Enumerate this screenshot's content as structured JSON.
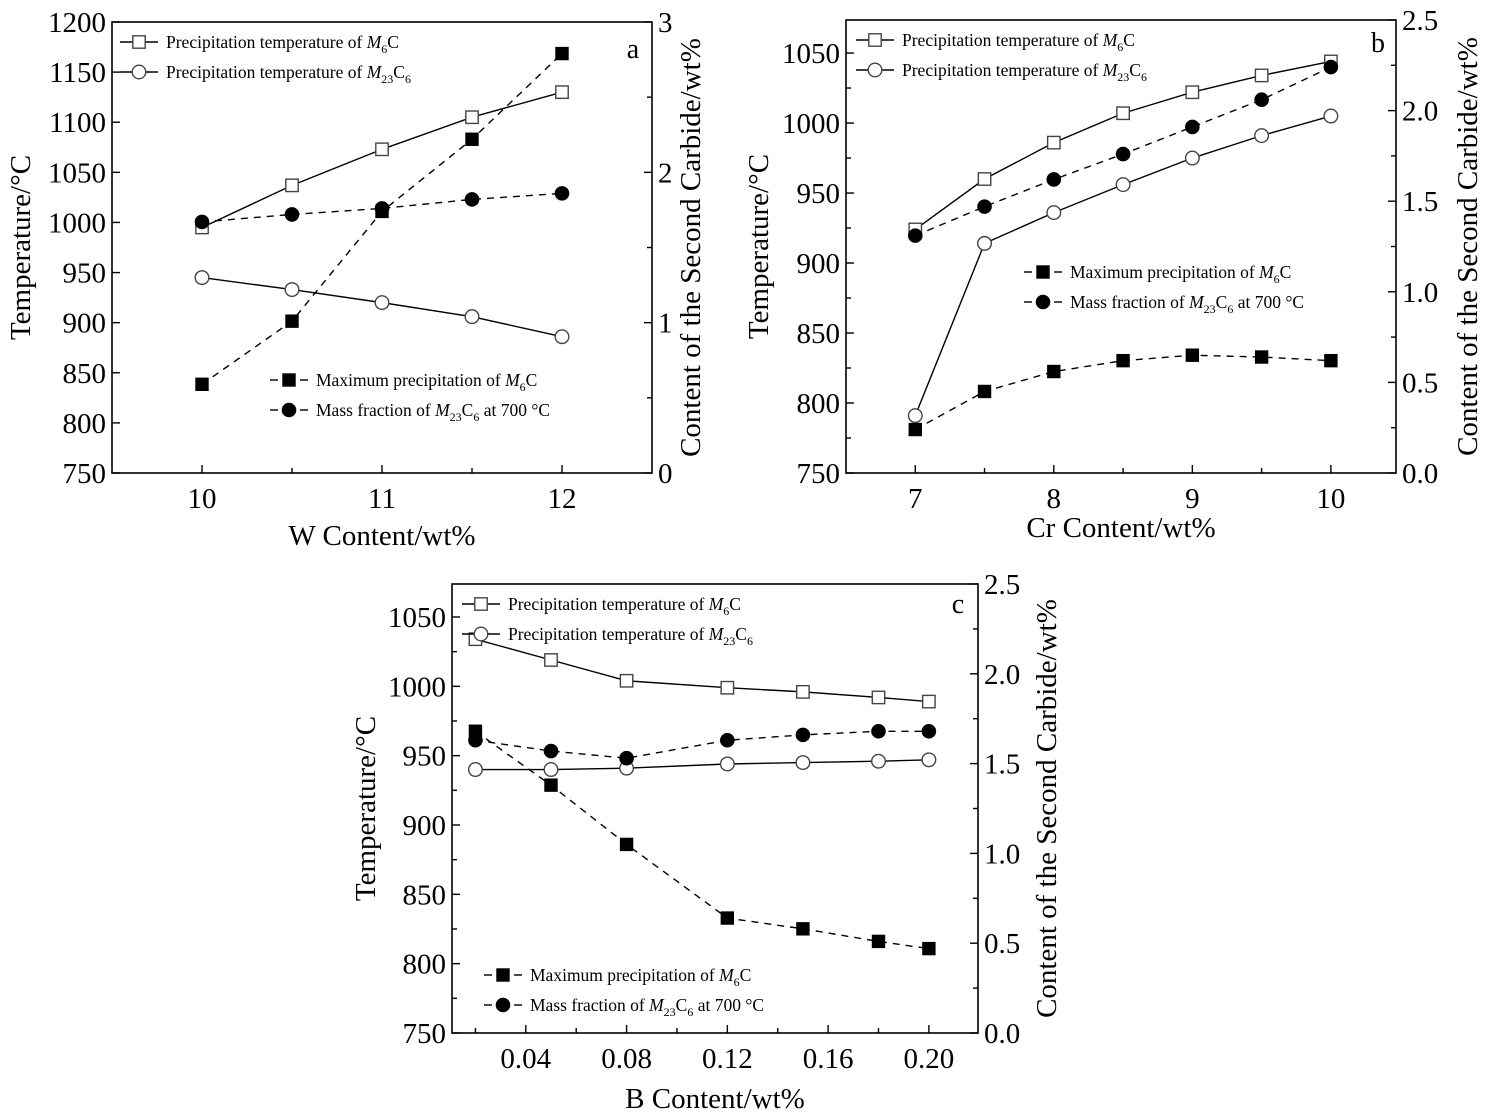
{
  "chart_data": [
    {
      "type": "line",
      "panel_label": "a",
      "xlabel": "W Content/wt%",
      "ylabel": "Temperature/°C",
      "y2label": "Content of the Second Carbide/wt%",
      "xlim": [
        9.5,
        12.5
      ],
      "ylim": [
        750,
        1200
      ],
      "y2lim": [
        0,
        3
      ],
      "xticks": [
        10,
        11,
        12
      ],
      "xtick_labels": [
        "10",
        "11",
        "12"
      ],
      "xminor": [
        10.5,
        11.5
      ],
      "yticks": [
        750,
        800,
        850,
        900,
        950,
        1000,
        1050,
        1100,
        1150,
        1200
      ],
      "ytick_labels": [
        "750",
        "800",
        "850",
        "900",
        "950",
        "1000",
        "1050",
        "1100",
        "1150",
        "1200"
      ],
      "yminor": [],
      "y2ticks": [
        0,
        1,
        2,
        3
      ],
      "y2tick_labels": [
        "0",
        "1",
        "2",
        "3"
      ],
      "y2minor": [
        0.5,
        1.5,
        2.5
      ],
      "grid": false,
      "legend_upper": "top-left",
      "legend_lower": "bottom-center",
      "x": [
        10,
        10.5,
        11,
        11.5,
        12
      ],
      "series": [
        {
          "name": "Precipitation temperature of M6C",
          "legend": {
            "pre": "Precipitation temperature of ",
            "m": "M",
            "msub": "6",
            "c": "C",
            "csub": "",
            "post": ""
          },
          "axis": "left",
          "marker": "open-square",
          "line": "solid",
          "values": [
            995,
            1037,
            1073,
            1105,
            1130
          ]
        },
        {
          "name": "Precipitation temperature of M23C6",
          "legend": {
            "pre": "Precipitation temperature of ",
            "m": "M",
            "msub": "23",
            "c": "C",
            "csub": "6",
            "post": ""
          },
          "axis": "left",
          "marker": "open-circle",
          "line": "solid",
          "values": [
            945,
            933,
            920,
            906,
            886
          ]
        },
        {
          "name": "Maximum precipitation of M6C",
          "legend": {
            "pre": "Maximum precipitation of ",
            "m": "M",
            "msub": "6",
            "c": "C",
            "csub": "",
            "post": ""
          },
          "axis": "right",
          "marker": "filled-square",
          "line": "dash",
          "values": [
            0.59,
            1.01,
            1.74,
            2.22,
            2.79
          ]
        },
        {
          "name": "Mass fraction of M23C6 at 700 °C",
          "legend": {
            "pre": "Mass fraction of ",
            "m": "M",
            "msub": "23",
            "c": "C",
            "csub": "6",
            "post": " at 700 °C"
          },
          "axis": "right",
          "marker": "filled-circle",
          "line": "dash",
          "values": [
            1.67,
            1.72,
            1.76,
            1.82,
            1.86
          ]
        }
      ]
    },
    {
      "type": "line",
      "panel_label": "b",
      "xlabel": "Cr Content/wt%",
      "ylabel": "Temperature/°C",
      "y2label": "Content of the Second Carbide/wt%",
      "xlim": [
        6.5,
        10.47
      ],
      "ylim": [
        750,
        1073.6
      ],
      "y2lim": [
        0,
        2.5
      ],
      "xticks": [
        7,
        8,
        9,
        10
      ],
      "xtick_labels": [
        "7",
        "8",
        "9",
        "10"
      ],
      "xminor": [
        7.5,
        8.5,
        9.5
      ],
      "yticks": [
        750,
        800,
        850,
        900,
        950,
        1000,
        1050
      ],
      "ytick_labels": [
        "750",
        "800",
        "850",
        "900",
        "950",
        "1000",
        "1050"
      ],
      "yminor": [
        775,
        825,
        875,
        925,
        975,
        1025
      ],
      "y2ticks": [
        0,
        0.5,
        1,
        1.5,
        2,
        2.5
      ],
      "y2tick_labels": [
        "0.0",
        "0.5",
        "1.0",
        "1.5",
        "2.0",
        "2.5"
      ],
      "y2minor": [
        0.25,
        0.75,
        1.25,
        1.75,
        2.25
      ],
      "grid": false,
      "legend_upper": "top-left",
      "legend_lower": "center-right",
      "x": [
        7,
        7.5,
        8,
        8.5,
        9,
        9.5,
        10
      ],
      "series": [
        {
          "name": "Precipitation temperature of M6C",
          "legend": {
            "pre": "Precipitation temperature of ",
            "m": "M",
            "msub": "6",
            "c": "C",
            "csub": "",
            "post": ""
          },
          "axis": "left",
          "marker": "open-square",
          "line": "solid",
          "values": [
            924,
            960,
            986,
            1007,
            1022,
            1034,
            1044
          ]
        },
        {
          "name": "Precipitation temperature of M23C6",
          "legend": {
            "pre": "Precipitation temperature of ",
            "m": "M",
            "msub": "23",
            "c": "C",
            "csub": "6",
            "post": ""
          },
          "axis": "left",
          "marker": "open-circle",
          "line": "solid",
          "values": [
            791,
            914,
            936,
            956,
            975,
            991,
            1005
          ]
        },
        {
          "name": "Maximum precipitation of M6C",
          "legend": {
            "pre": "Maximum precipitation of ",
            "m": "M",
            "msub": "6",
            "c": "C",
            "csub": "",
            "post": ""
          },
          "axis": "right",
          "marker": "filled-square",
          "line": "dash",
          "values": [
            0.24,
            0.45,
            0.56,
            0.62,
            0.65,
            0.64,
            0.62
          ]
        },
        {
          "name": "Mass fraction of M23C6 at 700 °C",
          "legend": {
            "pre": "Mass fraction of ",
            "m": "M",
            "msub": "23",
            "c": "C",
            "csub": "6",
            "post": " at 700 °C"
          },
          "axis": "right",
          "marker": "filled-circle",
          "line": "dash",
          "values": [
            1.31,
            1.47,
            1.62,
            1.76,
            1.91,
            2.06,
            2.24
          ]
        }
      ]
    },
    {
      "type": "line",
      "panel_label": "c",
      "xlabel": "B Content/wt%",
      "ylabel": "Temperature/°C",
      "y2label": "Content of the Second Carbide/wt%",
      "xlim": [
        0.0107,
        0.2195
      ],
      "ylim": [
        750,
        1073.8
      ],
      "y2lim": [
        0,
        2.5
      ],
      "xticks": [
        0.04,
        0.08,
        0.12,
        0.16,
        0.2
      ],
      "xtick_labels": [
        "0.04",
        "0.08",
        "0.12",
        "0.16",
        "0.20"
      ],
      "xminor": [
        0.02,
        0.06,
        0.1,
        0.14,
        0.18
      ],
      "yticks": [
        750,
        800,
        850,
        900,
        950,
        1000,
        1050
      ],
      "ytick_labels": [
        "750",
        "800",
        "850",
        "900",
        "950",
        "1000",
        "1050"
      ],
      "yminor": [
        775,
        825,
        875,
        925,
        975,
        1025
      ],
      "y2ticks": [
        0,
        0.5,
        1,
        1.5,
        2,
        2.5
      ],
      "y2tick_labels": [
        "0.0",
        "0.5",
        "1.0",
        "1.5",
        "2.0",
        "2.5"
      ],
      "y2minor": [
        0.25,
        0.75,
        1.25,
        1.75,
        2.25
      ],
      "grid": false,
      "legend_upper": "top-left",
      "legend_lower": "bottom-left",
      "x": [
        0.02,
        0.05,
        0.08,
        0.12,
        0.15,
        0.18,
        0.2
      ],
      "series": [
        {
          "name": "Precipitation temperature of M6C",
          "legend": {
            "pre": "Precipitation temperature of ",
            "m": "M",
            "msub": "6",
            "c": "C",
            "csub": "",
            "post": ""
          },
          "axis": "left",
          "marker": "open-square",
          "line": "solid",
          "values": [
            1034,
            1019,
            1004,
            999,
            996,
            992,
            989
          ]
        },
        {
          "name": "Precipitation temperature of M23C6",
          "legend": {
            "pre": "Precipitation temperature of ",
            "m": "M",
            "msub": "23",
            "c": "C",
            "csub": "6",
            "post": ""
          },
          "axis": "left",
          "marker": "open-circle",
          "line": "solid",
          "values": [
            940,
            940,
            941,
            944,
            945,
            946,
            947
          ]
        },
        {
          "name": "Maximum precipitation of M6C",
          "legend": {
            "pre": "Maximum precipitation of ",
            "m": "M",
            "msub": "6",
            "c": "C",
            "csub": "",
            "post": ""
          },
          "axis": "right",
          "marker": "filled-square",
          "line": "dash",
          "values": [
            1.68,
            1.38,
            1.05,
            0.64,
            0.58,
            0.51,
            0.47
          ]
        },
        {
          "name": "Mass fraction of M23C6 at 700 °C",
          "legend": {
            "pre": "Mass fraction of ",
            "m": "M",
            "msub": "23",
            "c": "C",
            "csub": "6",
            "post": " at 700 °C"
          },
          "axis": "right",
          "marker": "filled-circle",
          "line": "dash",
          "values": [
            1.63,
            1.57,
            1.53,
            1.63,
            1.66,
            1.68,
            1.68
          ]
        }
      ]
    }
  ]
}
